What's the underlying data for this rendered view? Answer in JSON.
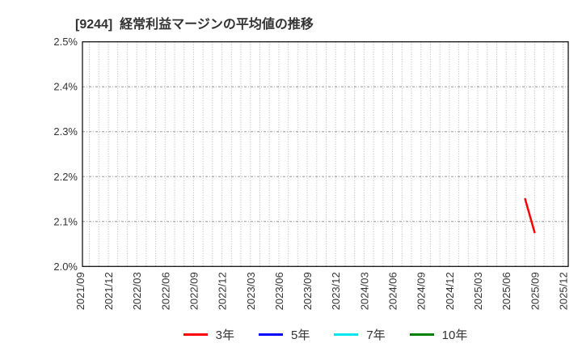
{
  "chart_data": {
    "type": "line",
    "title": "[9244]  経常利益マージンの平均値の推移",
    "xlabel": "",
    "ylabel": "",
    "ylim": [
      2.0,
      2.5
    ],
    "xlim": [
      "2021/09",
      "2026/01"
    ],
    "grid": {
      "vertical": "monthly-dotted",
      "horizontal": "every-0.1pct-dotted",
      "visible": true
    },
    "legend_position": "bottom-center",
    "y_ticks": [
      {
        "value": 2.0,
        "label": "2.0%"
      },
      {
        "value": 2.1,
        "label": "2.1%"
      },
      {
        "value": 2.2,
        "label": "2.2%"
      },
      {
        "value": 2.3,
        "label": "2.3%"
      },
      {
        "value": 2.4,
        "label": "2.4%"
      },
      {
        "value": 2.5,
        "label": "2.5%"
      }
    ],
    "x_ticks": [
      "2021/09",
      "2021/12",
      "2022/03",
      "2022/06",
      "2022/09",
      "2022/12",
      "2023/03",
      "2023/06",
      "2023/09",
      "2023/12",
      "2024/03",
      "2024/06",
      "2024/09",
      "2024/12",
      "2025/03",
      "2025/06",
      "2025/09",
      "2025/12"
    ],
    "series": [
      {
        "key": "3y",
        "name": "3年",
        "color": "#ff0000",
        "points": [
          {
            "x": "2025/08",
            "y": 2.15
          },
          {
            "x": "2025/09",
            "y": 2.076
          }
        ]
      },
      {
        "key": "5y",
        "name": "5年",
        "color": "#0000ff",
        "points": []
      },
      {
        "key": "7y",
        "name": "7年",
        "color": "#00e5ee",
        "points": []
      },
      {
        "key": "10y",
        "name": "10年",
        "color": "#008000",
        "points": []
      }
    ],
    "colors": {
      "plot_border": "#000000",
      "grid_vertical": "#b5b5b5",
      "grid_horizontal": "#999999",
      "tick_text": "#333333",
      "title_text": "#333333",
      "background": "#ffffff"
    }
  }
}
